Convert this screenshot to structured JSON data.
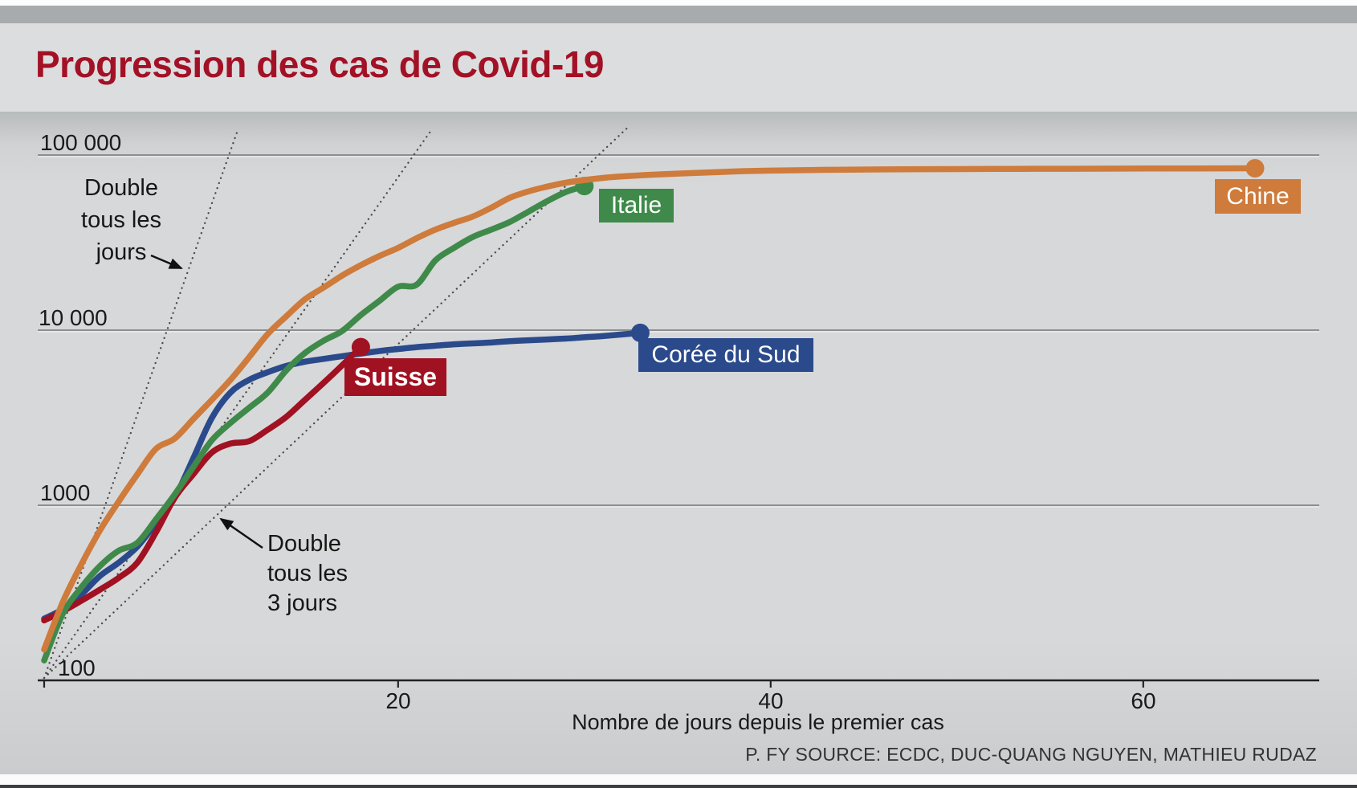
{
  "page": {
    "title": "Progression des cas de Covid-19",
    "title_color": "#a31126",
    "source": "P. FY SOURCE: ECDC, DUC-QUANG NGUYEN, MATHIEU RUDAZ"
  },
  "chart_data": {
    "type": "line",
    "title": "Progression des cas de Covid-19",
    "xlabel": "Nombre de jours depuis le premier cas",
    "ylabel": "",
    "x_axis": {
      "min_day": 1,
      "max_day": 69,
      "ticks": [
        {
          "value": 20,
          "label": "20"
        },
        {
          "value": 40,
          "label": "40"
        },
        {
          "value": 60,
          "label": "60"
        }
      ]
    },
    "y_axis": {
      "scale": "log",
      "min": 100,
      "max": 140000,
      "ticks": [
        {
          "value": 100000,
          "label": "100 000"
        },
        {
          "value": 10000,
          "label": "10 000"
        },
        {
          "value": 1000,
          "label": "1000"
        },
        {
          "value": 100,
          "label": "100"
        }
      ]
    },
    "layout": {
      "grid_color": "#8c8e8f",
      "axis_color": "#222222",
      "guide_color": "#4a4a4a",
      "legend_position": "inline-labels"
    },
    "guides": [
      {
        "doubling_days": 1,
        "description": "Double tous les jours"
      },
      {
        "doubling_days": 2,
        "description": ""
      },
      {
        "doubling_days": 3,
        "description": "Double tous les 3 jours"
      }
    ],
    "annotations": [
      {
        "lines": [
          "Double",
          "tous les",
          "jours"
        ]
      },
      {
        "lines": [
          "Double",
          "tous les",
          "3 jours"
        ]
      }
    ],
    "series": [
      {
        "name": "Corée du Sud",
        "color": "#2b4a8c",
        "points": [
          [
            1,
            225
          ],
          [
            2,
            255
          ],
          [
            3,
            310
          ],
          [
            4,
            395
          ],
          [
            5,
            470
          ],
          [
            6,
            580
          ],
          [
            7,
            790
          ],
          [
            8,
            1100
          ],
          [
            9,
            1850
          ],
          [
            10,
            3150
          ],
          [
            11,
            4400
          ],
          [
            12,
            5200
          ],
          [
            13,
            5750
          ],
          [
            14,
            6250
          ],
          [
            15,
            6600
          ],
          [
            16,
            6850
          ],
          [
            17,
            7100
          ],
          [
            18,
            7350
          ],
          [
            19,
            7600
          ],
          [
            20,
            7800
          ],
          [
            21,
            8000
          ],
          [
            22,
            8150
          ],
          [
            23,
            8300
          ],
          [
            24,
            8400
          ],
          [
            25,
            8500
          ],
          [
            26,
            8650
          ],
          [
            27,
            8750
          ],
          [
            28,
            8850
          ],
          [
            29,
            8950
          ],
          [
            30,
            9100
          ],
          [
            31,
            9250
          ],
          [
            32,
            9450
          ],
          [
            33,
            9650
          ]
        ]
      },
      {
        "name": "Suisse",
        "color": "#a01122",
        "points": [
          [
            1,
            220
          ],
          [
            2,
            248
          ],
          [
            3,
            285
          ],
          [
            4,
            330
          ],
          [
            5,
            385
          ],
          [
            6,
            470
          ],
          [
            7,
            700
          ],
          [
            8,
            1100
          ],
          [
            9,
            1500
          ],
          [
            10,
            2000
          ],
          [
            11,
            2250
          ],
          [
            12,
            2320
          ],
          [
            13,
            2700
          ],
          [
            14,
            3200
          ],
          [
            15,
            4000
          ],
          [
            16,
            5000
          ],
          [
            17,
            6300
          ],
          [
            18,
            8000
          ]
        ]
      },
      {
        "name": "Italie",
        "color": "#3f8a4a",
        "points": [
          [
            1,
            130
          ],
          [
            2,
            240
          ],
          [
            3,
            340
          ],
          [
            4,
            450
          ],
          [
            5,
            550
          ],
          [
            6,
            610
          ],
          [
            7,
            830
          ],
          [
            8,
            1150
          ],
          [
            9,
            1650
          ],
          [
            10,
            2350
          ],
          [
            11,
            2950
          ],
          [
            12,
            3600
          ],
          [
            13,
            4400
          ],
          [
            14,
            5900
          ],
          [
            15,
            7400
          ],
          [
            16,
            8700
          ],
          [
            17,
            9900
          ],
          [
            18,
            12200
          ],
          [
            19,
            14700
          ],
          [
            20,
            17700
          ],
          [
            21,
            18200
          ],
          [
            22,
            25000
          ],
          [
            23,
            29500
          ],
          [
            24,
            34000
          ],
          [
            25,
            37500
          ],
          [
            26,
            41500
          ],
          [
            27,
            47500
          ],
          [
            28,
            54500
          ],
          [
            29,
            61500
          ],
          [
            30,
            66500
          ]
        ]
      },
      {
        "name": "Chine",
        "color": "#ce7b3c",
        "points": [
          [
            1,
            150
          ],
          [
            2,
            280
          ],
          [
            3,
            460
          ],
          [
            4,
            720
          ],
          [
            5,
            1050
          ],
          [
            6,
            1500
          ],
          [
            7,
            2100
          ],
          [
            8,
            2400
          ],
          [
            9,
            3100
          ],
          [
            10,
            4000
          ],
          [
            11,
            5200
          ],
          [
            12,
            7000
          ],
          [
            13,
            9500
          ],
          [
            14,
            12000
          ],
          [
            15,
            15000
          ],
          [
            16,
            17500
          ],
          [
            17,
            20500
          ],
          [
            18,
            23500
          ],
          [
            19,
            26500
          ],
          [
            20,
            29500
          ],
          [
            21,
            33500
          ],
          [
            22,
            37500
          ],
          [
            23,
            41000
          ],
          [
            24,
            44500
          ],
          [
            25,
            50000
          ],
          [
            26,
            57000
          ],
          [
            27,
            62000
          ],
          [
            28,
            66000
          ],
          [
            29,
            69500
          ],
          [
            30,
            72000
          ],
          [
            31,
            74000
          ],
          [
            32,
            75500
          ],
          [
            34,
            77500
          ],
          [
            36,
            79000
          ],
          [
            38,
            80500
          ],
          [
            40,
            81500
          ],
          [
            44,
            82500
          ],
          [
            48,
            83000
          ],
          [
            52,
            83300
          ],
          [
            56,
            83500
          ],
          [
            60,
            83700
          ],
          [
            66,
            84000
          ]
        ]
      }
    ]
  }
}
